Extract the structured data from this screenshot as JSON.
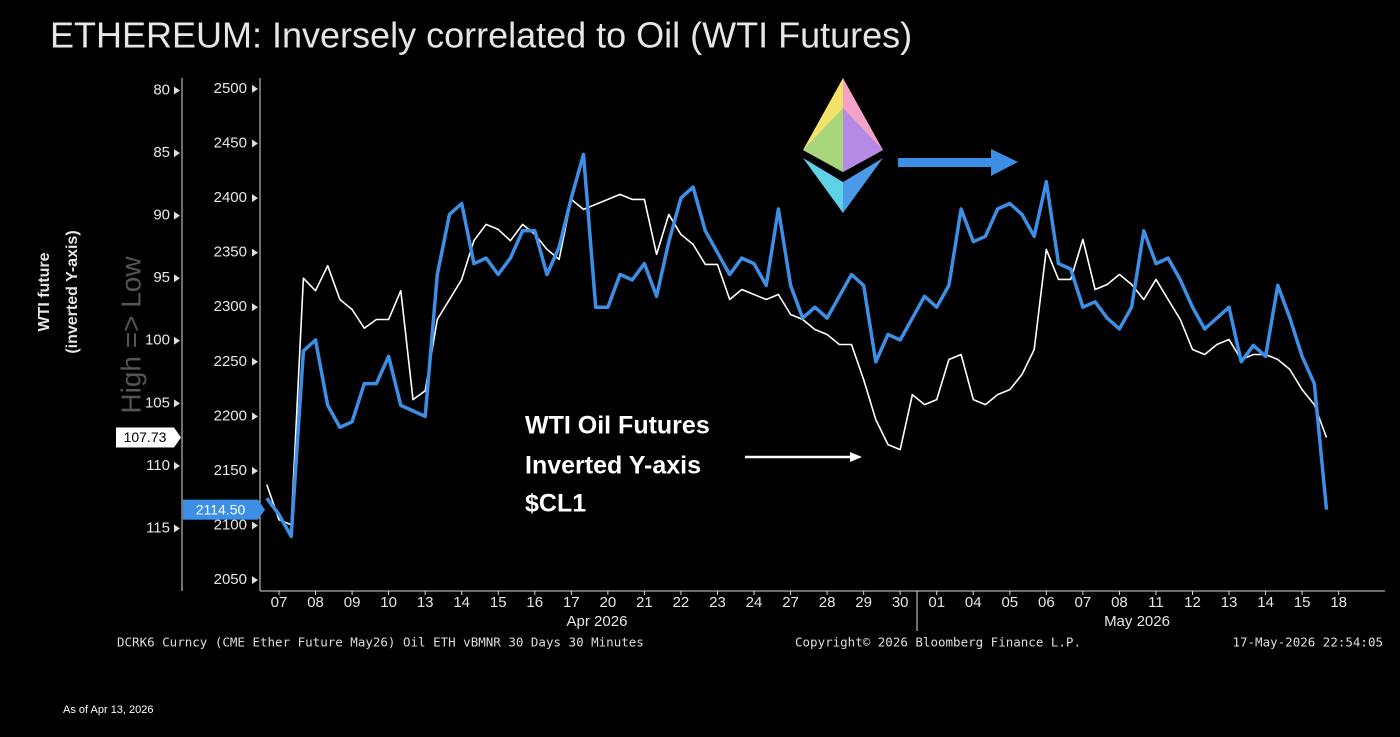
{
  "chart_data": {
    "type": "line",
    "title": "ETHEREUM: Inversely correlated to Oil (WTI Futures)",
    "y2_label": [
      "WTI future",
      "(inverted Y-axis)"
    ],
    "y2_sublabel": "High => Low",
    "annotation": [
      "WTI Oil Futures",
      "Inverted Y-axis",
      "$CL1"
    ],
    "categories": [
      null,
      "07",
      null,
      null,
      "08",
      null,
      null,
      "09",
      null,
      null,
      "10",
      null,
      null,
      "13",
      null,
      null,
      "14",
      null,
      null,
      "15",
      null,
      null,
      "16",
      null,
      null,
      "17",
      null,
      null,
      "20",
      null,
      null,
      "21",
      null,
      null,
      "22",
      null,
      null,
      "23",
      null,
      null,
      "24",
      null,
      null,
      "27",
      null,
      null,
      "28",
      null,
      null,
      "29",
      null,
      null,
      "30",
      null,
      null,
      "01",
      null,
      null,
      "04",
      null,
      null,
      "05",
      null,
      null,
      "06",
      null,
      null,
      "07",
      null,
      null,
      "08",
      null,
      null,
      "11",
      null,
      null,
      "12",
      null,
      null,
      "13",
      null,
      null,
      "14",
      null,
      null,
      "15",
      null,
      null,
      "18"
    ],
    "month_labels": [
      "Apr 2026",
      "May 2026"
    ],
    "series": [
      {
        "color": "#3d8fe6",
        "axis": "y",
        "last_label": "2114.50",
        "values": [
          2125,
          2110,
          2090,
          2260,
          2270,
          2210,
          2190,
          2195,
          2230,
          2230,
          2255,
          2210,
          2205,
          2200,
          2330,
          2385,
          2395,
          2340,
          2345,
          2330,
          2345,
          2370,
          2370,
          2330,
          2355,
          2400,
          2440,
          2300,
          2300,
          2330,
          2325,
          2340,
          2310,
          2360,
          2400,
          2410,
          2370,
          2350,
          2330,
          2345,
          2340,
          2320,
          2390,
          2320,
          2290,
          2300,
          2290,
          2310,
          2330,
          2320,
          2250,
          2275,
          2270,
          2290,
          2310,
          2300,
          2320,
          2390,
          2360,
          2365,
          2390,
          2395,
          2385,
          2365,
          2415,
          2340,
          2335,
          2300,
          2305,
          2290,
          2280,
          2300,
          2370,
          2340,
          2345,
          2325,
          2300,
          2280,
          2290,
          2300,
          2250,
          2265,
          2255,
          2320,
          2290,
          2255,
          2230,
          2114.5,
          null
        ]
      },
      {
        "color": "#ffffff",
        "axis": "y2",
        "last_label": "107.73",
        "values": [
          111.5,
          114.3,
          114.7,
          95,
          96,
          94,
          96.7,
          97.5,
          99,
          98.3,
          98.3,
          96,
          104.7,
          104,
          98.3,
          96.7,
          95.1,
          92,
          90.7,
          91.1,
          92,
          90.7,
          91.5,
          92.7,
          93.5,
          88.7,
          89.5,
          89.1,
          88.7,
          88.3,
          88.7,
          88.7,
          93.1,
          89.9,
          91.5,
          92.3,
          93.9,
          93.9,
          96.7,
          95.9,
          96.3,
          96.7,
          96.3,
          97.9,
          98.3,
          99.1,
          99.5,
          100.3,
          100.3,
          103.1,
          106.3,
          108.3,
          108.7,
          104.3,
          105.1,
          104.7,
          101.5,
          101.1,
          104.7,
          105.1,
          104.3,
          103.9,
          102.7,
          100.7,
          92.7,
          95.1,
          95.1,
          91.9,
          95.9,
          95.5,
          94.7,
          95.5,
          96.7,
          95.1,
          96.7,
          98.3,
          100.7,
          101.1,
          100.3,
          99.9,
          101.5,
          101.1,
          101.1,
          101.5,
          102.3,
          103.9,
          105.1,
          107.73,
          null
        ]
      }
    ],
    "ylim": [
      2040,
      2510
    ],
    "yticks": [
      2050,
      2100,
      2150,
      2200,
      2250,
      2300,
      2350,
      2400,
      2450,
      2500
    ],
    "y2lim": [
      79,
      120
    ],
    "y2ticks": [
      80,
      85,
      90,
      95,
      100,
      105,
      110,
      115
    ],
    "y2_inverted": true,
    "grid": false,
    "footer": [
      "DCRK6 Curncy (CME Ether Future  May26) Oil ETH vBMNR 30 Days 30 Minutes",
      "Copyright© 2026 Bloomberg Finance L.P.",
      "17-May-2026 22:54:05"
    ],
    "as_of": "As of Apr 13, 2026"
  }
}
